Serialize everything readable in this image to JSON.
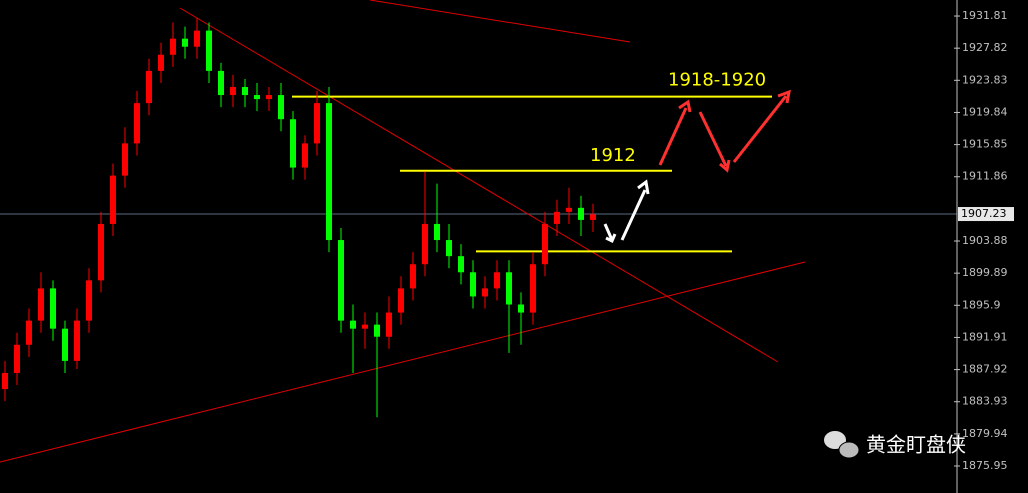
{
  "chart_data": {
    "type": "candlestick",
    "open": [
      1885.5,
      1887.5,
      1891,
      1894,
      1898,
      1893,
      1889,
      1894,
      1899,
      1906,
      1912,
      1916,
      1921,
      1925,
      1927,
      1929,
      1928,
      1930,
      1925,
      1922,
      1923,
      1922,
      1921.5,
      1922,
      1919,
      1913,
      1916,
      1921,
      1904,
      1894,
      1893,
      1893.5,
      1892,
      1895,
      1898,
      1901,
      1906,
      1904,
      1902,
      1900,
      1897,
      1898,
      1900,
      1896,
      1895,
      1901,
      1906,
      1907.5,
      1908,
      1906.5
    ],
    "high": [
      1889,
      1892.5,
      1895.5,
      1900,
      1899,
      1894,
      1895.5,
      1900.5,
      1907.5,
      1913.5,
      1918,
      1922.5,
      1926.5,
      1928.5,
      1931,
      1930.5,
      1931.5,
      1931,
      1926,
      1924.5,
      1924,
      1923.5,
      1923,
      1923.5,
      1920,
      1917,
      1922.5,
      1923,
      1905.5,
      1896,
      1895,
      1895,
      1897,
      1899.5,
      1902.5,
      1912.5,
      1911,
      1906,
      1903.5,
      1901.5,
      1899.5,
      1901.5,
      1901.5,
      1897.5,
      1902.5,
      1907.5,
      1909,
      1910.5,
      1909.5,
      1908.5
    ],
    "low": [
      1884,
      1886,
      1889.5,
      1892.5,
      1891.5,
      1887.5,
      1888,
      1892.5,
      1897.5,
      1904.5,
      1910.5,
      1914.5,
      1919.5,
      1923.5,
      1925.5,
      1926.5,
      1926.5,
      1923.5,
      1920.5,
      1920.5,
      1920.5,
      1920,
      1920,
      1917.5,
      1911.5,
      1911.5,
      1914.5,
      1902.5,
      1892.5,
      1887.5,
      1890.5,
      1882,
      1890.5,
      1893.5,
      1896.5,
      1899.5,
      1902.5,
      1900.5,
      1898.5,
      1895.5,
      1895.5,
      1896.5,
      1890,
      1891,
      1893.5,
      1899.5,
      1904.5,
      1906,
      1904.5,
      1905
    ],
    "close": [
      1887.5,
      1891,
      1894,
      1898,
      1893,
      1889,
      1894,
      1899,
      1906,
      1912,
      1916,
      1921,
      1925,
      1927,
      1929,
      1928,
      1930,
      1925,
      1922,
      1923,
      1922,
      1921.5,
      1922,
      1919,
      1913,
      1916,
      1921,
      1904,
      1894,
      1893,
      1893.5,
      1892,
      1895,
      1898,
      1901,
      1906,
      1904,
      1902,
      1900,
      1897,
      1898,
      1900,
      1896,
      1895,
      1901,
      1906,
      1907.5,
      1908,
      1906.5,
      1907.2
    ],
    "up_color": "#ff0000",
    "down_color": "#00ff00",
    "ylim": [
      1872.6,
      1933.8
    ],
    "yticks": [
      1931.81,
      1927.82,
      1923.83,
      1919.84,
      1915.85,
      1911.86,
      1903.88,
      1899.89,
      1895.9,
      1891.91,
      1887.92,
      1883.93,
      1879.94,
      1875.95
    ],
    "current_price": 1907.23,
    "levels": [
      1921.8,
      1912.6,
      1902.6
    ],
    "annotations": [
      "1918-1920",
      "1912"
    ],
    "watermark": "黄金盯盘侠"
  }
}
